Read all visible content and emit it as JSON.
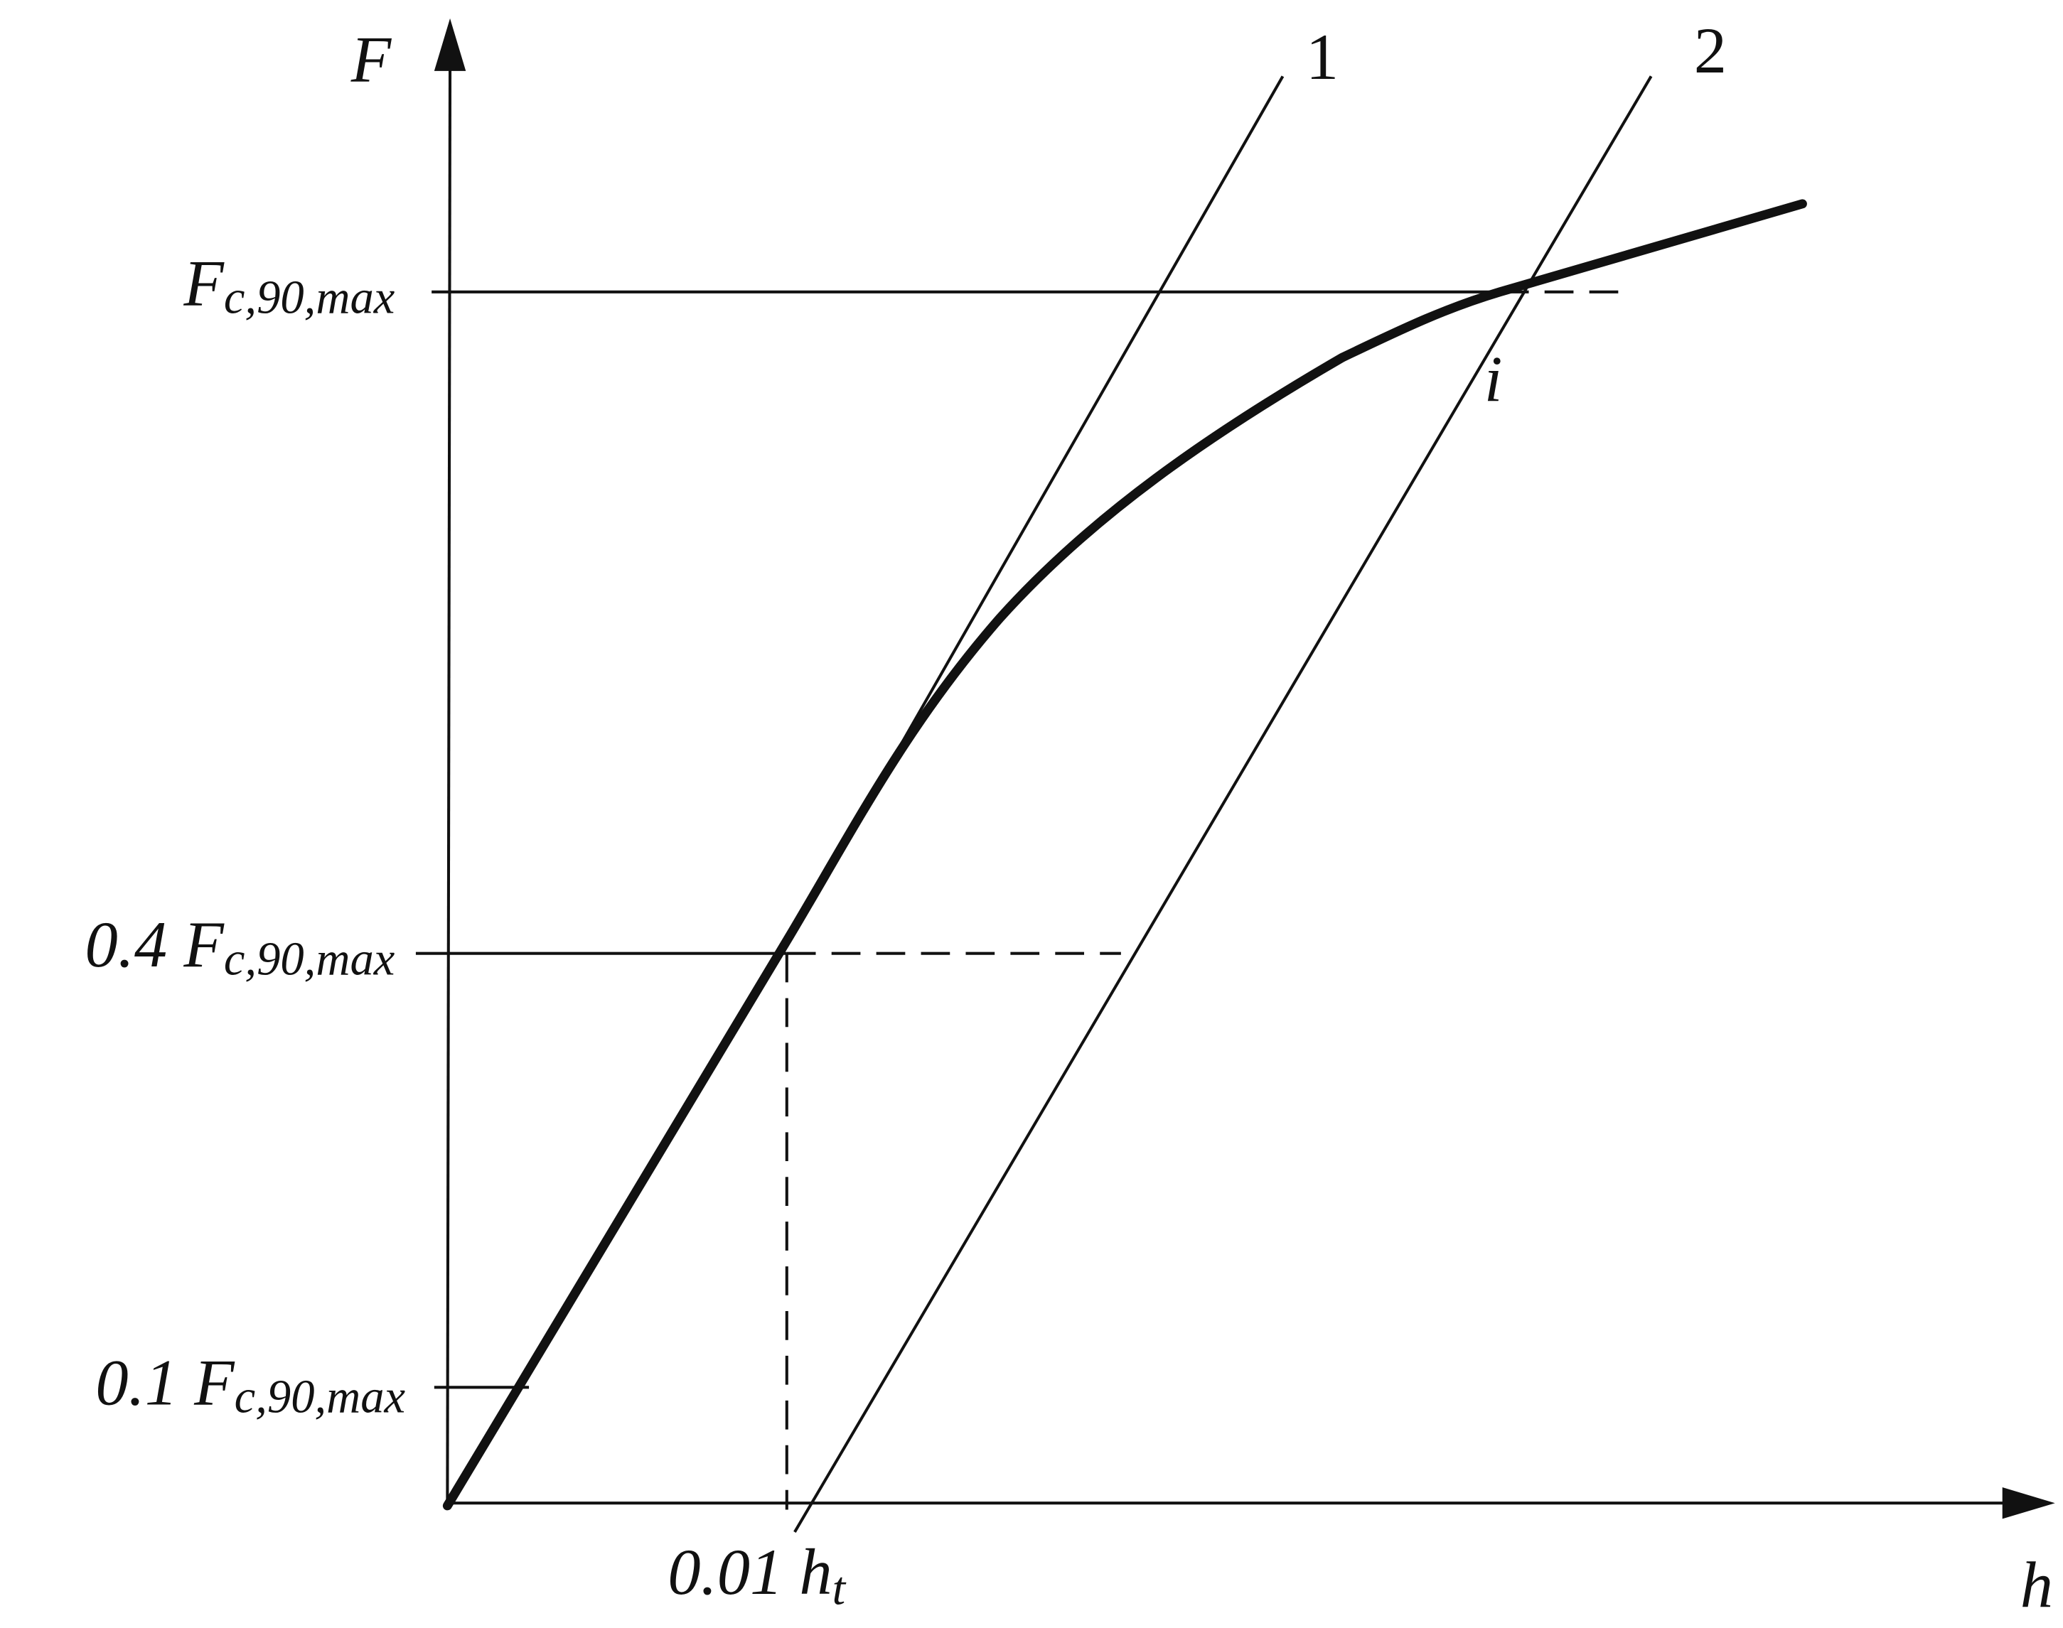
{
  "axes": {
    "y_label": "F",
    "x_label": "h"
  },
  "y_levels": [
    {
      "symbol": "F",
      "subscript": "c,90,max"
    },
    {
      "coefficient": "0.4",
      "symbol": "F",
      "subscript": "c,90,max"
    },
    {
      "coefficient": "0.1",
      "symbol": "F",
      "subscript": "c,90,max"
    }
  ],
  "x_level": {
    "coefficient": "0.01",
    "symbol": "h",
    "subscript": "t"
  },
  "lines": [
    {
      "label": "1"
    },
    {
      "label": "2"
    }
  ],
  "point": {
    "label": "i"
  }
}
